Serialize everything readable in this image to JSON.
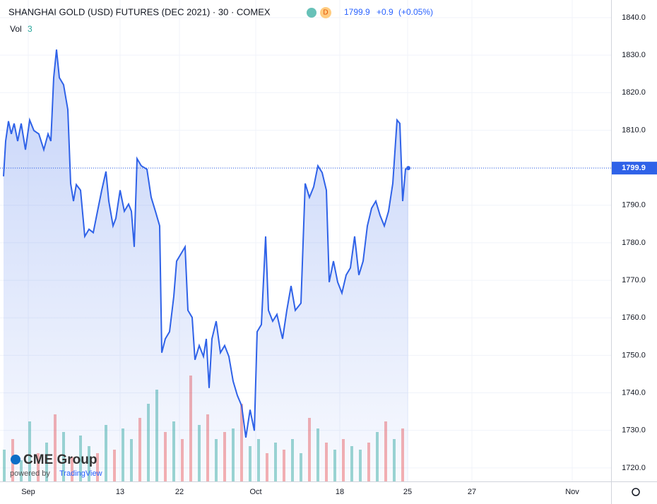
{
  "header": {
    "title": "SHANGHAI GOLD (USD) FUTURES (DEC 2021) · 30 · COMEX",
    "badge": "D",
    "price": "1799.9",
    "change": "+0.9",
    "change_pct": "(+0.05%)",
    "vol_label": "Vol",
    "vol_value": "3",
    "logo": "CME Group",
    "powered": "powered by",
    "powered_brand": "TradingView"
  },
  "chart_data": {
    "type": "area",
    "color": "#2f62e8",
    "last_label": "1799.9",
    "x": [
      5,
      8,
      12,
      16,
      20,
      25,
      30,
      36,
      42,
      48,
      55,
      62,
      68,
      72,
      76,
      80,
      84,
      90,
      96,
      100,
      104,
      108,
      114,
      120,
      126,
      132,
      138,
      144,
      150,
      154,
      160,
      164,
      170,
      176,
      182,
      186,
      190,
      194,
      200,
      208,
      214,
      220,
      226,
      229,
      234,
      240,
      246,
      250,
      256,
      262,
      266,
      272,
      276,
      282,
      288,
      292,
      296,
      300,
      306,
      312,
      318,
      324,
      330,
      336,
      342,
      348,
      354,
      360,
      364,
      370,
      376,
      380,
      386,
      392,
      400,
      406,
      412,
      418,
      426,
      432,
      438,
      444,
      450,
      456,
      462,
      466,
      472,
      478,
      484,
      490,
      496,
      502,
      508,
      514,
      520,
      526,
      532,
      538,
      544,
      550,
      556,
      562,
      566,
      570,
      574,
      578
    ],
    "values": [
      1797.7,
      1807.1,
      1812.4,
      1809.0,
      1811.8,
      1807.1,
      1811.8,
      1804.8,
      1812.7,
      1809.9,
      1809.0,
      1804.8,
      1809.0,
      1807.1,
      1824.0,
      1831.5,
      1824.0,
      1822.1,
      1815.5,
      1795.8,
      1791.1,
      1795.5,
      1794.0,
      1781.7,
      1783.6,
      1782.7,
      1788.4,
      1794.0,
      1799.0,
      1791.1,
      1784.5,
      1786.5,
      1794.0,
      1788.4,
      1790.3,
      1788.4,
      1778.9,
      1802.4,
      1800.5,
      1799.6,
      1792.1,
      1788.4,
      1784.5,
      1750.7,
      1754.4,
      1756.3,
      1765.7,
      1775.1,
      1777.0,
      1778.9,
      1762.0,
      1760.1,
      1748.8,
      1752.6,
      1749.7,
      1754.4,
      1741.3,
      1754.4,
      1759.1,
      1750.7,
      1752.6,
      1749.7,
      1743.1,
      1739.3,
      1736.6,
      1728.1,
      1735.5,
      1729.9,
      1756.3,
      1758.2,
      1781.7,
      1762.0,
      1759.1,
      1760.9,
      1754.4,
      1762.0,
      1768.5,
      1762.0,
      1763.9,
      1795.8,
      1792.1,
      1794.9,
      1800.5,
      1798.7,
      1794.0,
      1769.5,
      1775.1,
      1769.5,
      1766.6,
      1771.4,
      1773.3,
      1781.7,
      1771.4,
      1775.1,
      1784.5,
      1789.2,
      1791.1,
      1787.3,
      1784.5,
      1788.4,
      1795.8,
      1812.7,
      1811.8,
      1791.1,
      1799.6,
      1799.9
    ],
    "xlim": [
      0,
      865
    ],
    "ylim": [
      1716.4,
      1844.7
    ],
    "xticks": [
      {
        "value": 40,
        "label": "Sep"
      },
      {
        "value": 170,
        "label": "13"
      },
      {
        "value": 254,
        "label": "22"
      },
      {
        "value": 362,
        "label": "Oct"
      },
      {
        "value": 481,
        "label": "18"
      },
      {
        "value": 577,
        "label": "25"
      },
      {
        "value": 668,
        "label": "27"
      },
      {
        "value": 810,
        "label": "Nov"
      }
    ],
    "yticks": [
      {
        "value": 1720,
        "label": "1720.0"
      },
      {
        "value": 1730,
        "label": "1730.0"
      },
      {
        "value": 1740,
        "label": "1740.0"
      },
      {
        "value": 1750,
        "label": "1750.0"
      },
      {
        "value": 1760,
        "label": "1760.0"
      },
      {
        "value": 1770,
        "label": "1770.0"
      },
      {
        "value": 1780,
        "label": "1780.0"
      },
      {
        "value": 1790,
        "label": "1790.0"
      },
      {
        "value": 1800,
        "label": "1800.0"
      },
      {
        "value": 1810,
        "label": "1810.0"
      },
      {
        "value": 1820,
        "label": "1820.0"
      },
      {
        "value": 1830,
        "label": "1830.0"
      },
      {
        "value": 1840,
        "label": "1840.0"
      }
    ],
    "grid": true,
    "volume": {
      "x": [
        6,
        18,
        30,
        42,
        54,
        66,
        78,
        90,
        102,
        114,
        126,
        138,
        150,
        162,
        174,
        186,
        198,
        210,
        222,
        234,
        246,
        258,
        270,
        282,
        294,
        306,
        318,
        330,
        342,
        354,
        366,
        378,
        390,
        402,
        414,
        426,
        438,
        450,
        462,
        474,
        486,
        498,
        510,
        522,
        534,
        546,
        558,
        570
      ],
      "values": [
        45,
        60,
        30,
        85,
        40,
        55,
        95,
        70,
        35,
        65,
        50,
        40,
        80,
        45,
        75,
        60,
        90,
        110,
        130,
        70,
        85,
        60,
        150,
        80,
        95,
        60,
        70,
        75,
        110,
        50,
        60,
        40,
        55,
        45,
        60,
        40,
        90,
        75,
        55,
        45,
        60,
        50,
        45,
        55,
        70,
        85,
        60,
        75
      ],
      "up": [
        true,
        false,
        true,
        true,
        false,
        true,
        false,
        true,
        false,
        true,
        true,
        false,
        true,
        false,
        true,
        true,
        false,
        true,
        true,
        false,
        true,
        false,
        false,
        true,
        false,
        true,
        false,
        true,
        false,
        true,
        true,
        false,
        true,
        false,
        true,
        true,
        false,
        true,
        false,
        true,
        false,
        true,
        true,
        false,
        true,
        false,
        true,
        false
      ],
      "colors": [
        "#26a69a",
        "#ef5350"
      ]
    }
  }
}
